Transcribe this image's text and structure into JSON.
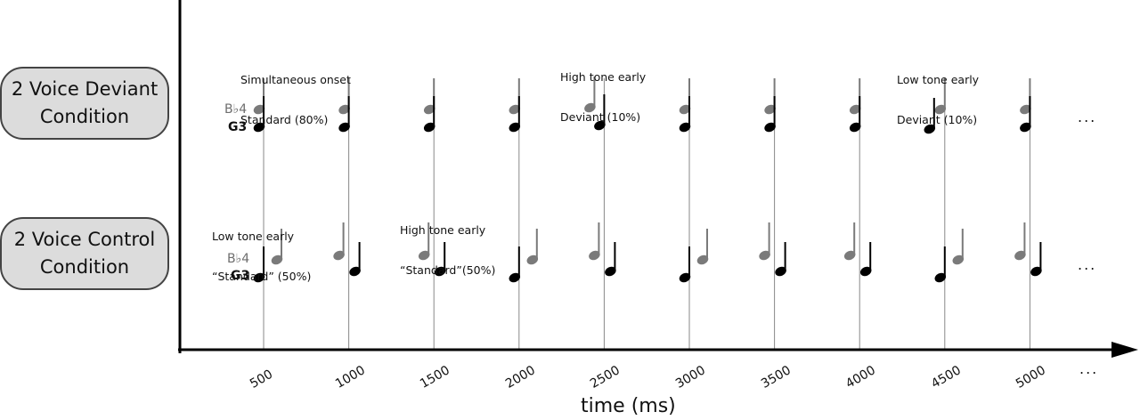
{
  "conditions": {
    "deviant": {
      "line1": "2 Voice Deviant",
      "line2": "Condition"
    },
    "control": {
      "line1": "2 Voice Control",
      "line2": "Condition"
    }
  },
  "pitch_labels": {
    "high": "B♭4",
    "low": "G3"
  },
  "annotations": {
    "simultaneous": {
      "line1": "Simultaneous onset",
      "line2": "Standard (80%)"
    },
    "high_deviant": {
      "line1": "High tone early",
      "line2": "Deviant (10%)"
    },
    "low_deviant": {
      "line1": "Low tone early",
      "line2": "Deviant (10%)"
    },
    "low_standard": {
      "line1": "Low tone early",
      "line2": "“Standard” (50%)"
    },
    "high_standard": {
      "line1": "High tone early",
      "line2": "“Standard”(50%)"
    }
  },
  "x_ticks": [
    "500",
    "1000",
    "1500",
    "2000",
    "2500",
    "3000",
    "3500",
    "4000",
    "4500",
    "5000"
  ],
  "x_label": "time (ms)",
  "ellipsis": "...",
  "deviant_sequence": [
    "sync",
    "sync",
    "sync",
    "sync",
    "high-early",
    "sync",
    "sync",
    "sync",
    "low-early",
    "sync"
  ],
  "control_sequence": [
    "low-early",
    "high-early",
    "high-early",
    "low-early",
    "high-early",
    "low-early",
    "high-early",
    "high-early",
    "low-early",
    "high-early"
  ],
  "colors": {
    "high_note": "#7a7a7a",
    "low_note": "#000000",
    "grid_line": "#888888",
    "pill_fill": "#dcdcdc"
  }
}
